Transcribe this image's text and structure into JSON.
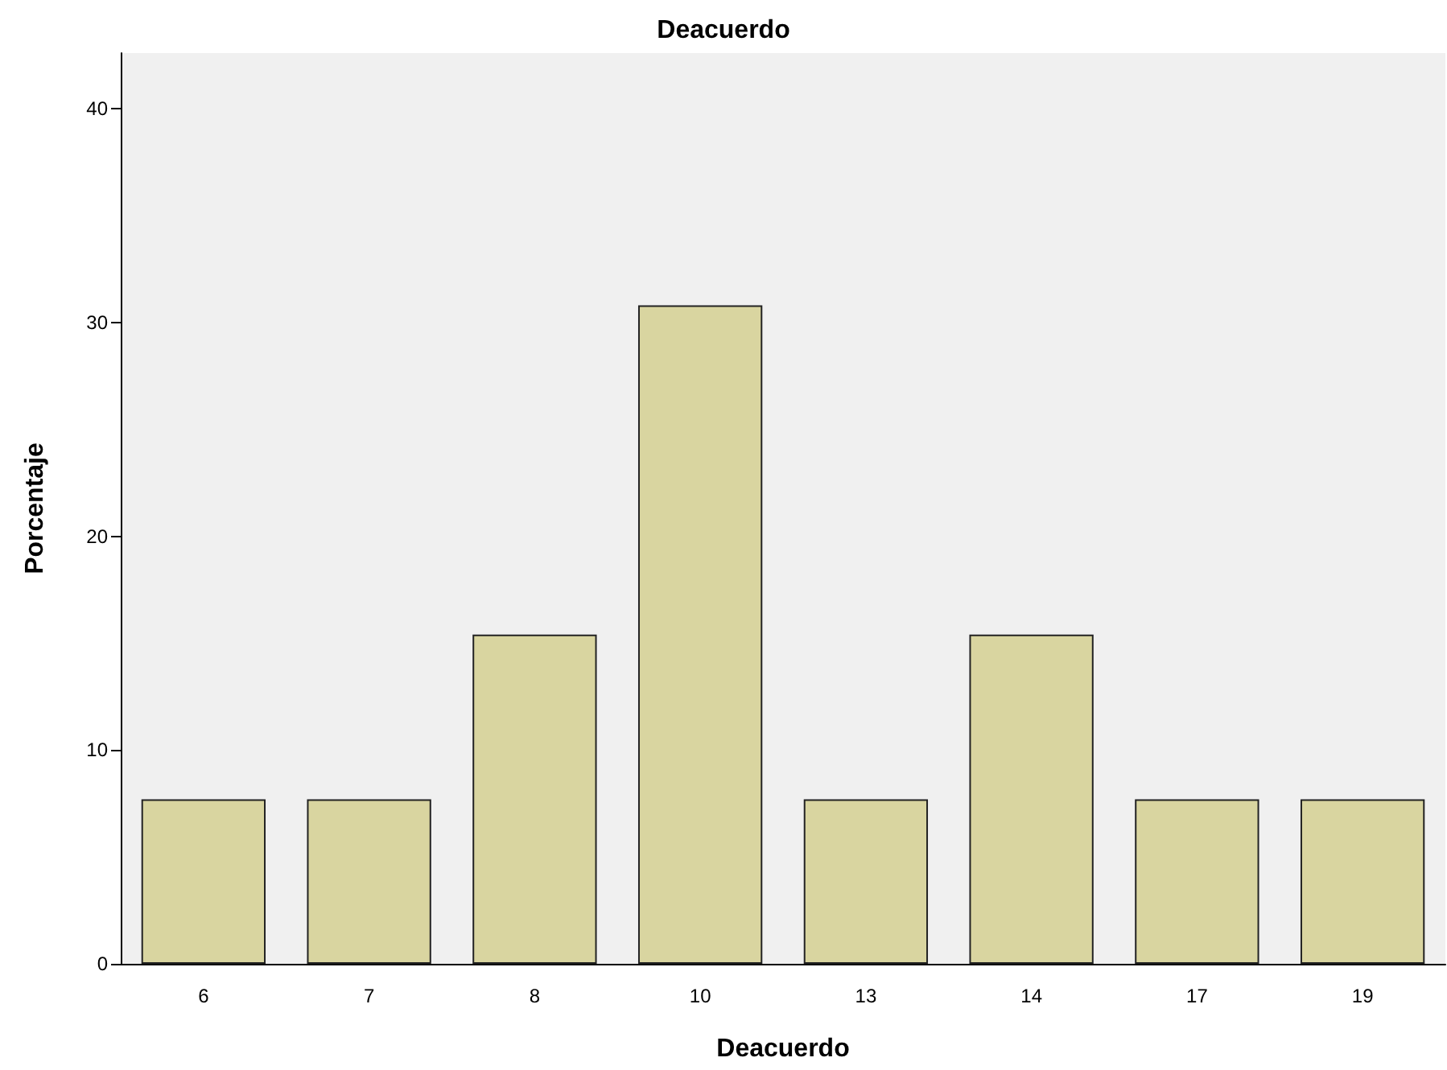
{
  "chart_data": {
    "type": "bar",
    "title": "Deacuerdo",
    "xlabel": "Deacuerdo",
    "ylabel": "Porcentaje",
    "categories": [
      "6",
      "7",
      "8",
      "10",
      "13",
      "14",
      "17",
      "19"
    ],
    "values": [
      7.7,
      7.7,
      15.4,
      30.8,
      7.7,
      15.4,
      7.7,
      7.7
    ],
    "color": "#d9d5a0",
    "ylim": [
      0,
      42.6
    ],
    "yticks": [
      0,
      10,
      20,
      30,
      40
    ],
    "grid": false
  }
}
